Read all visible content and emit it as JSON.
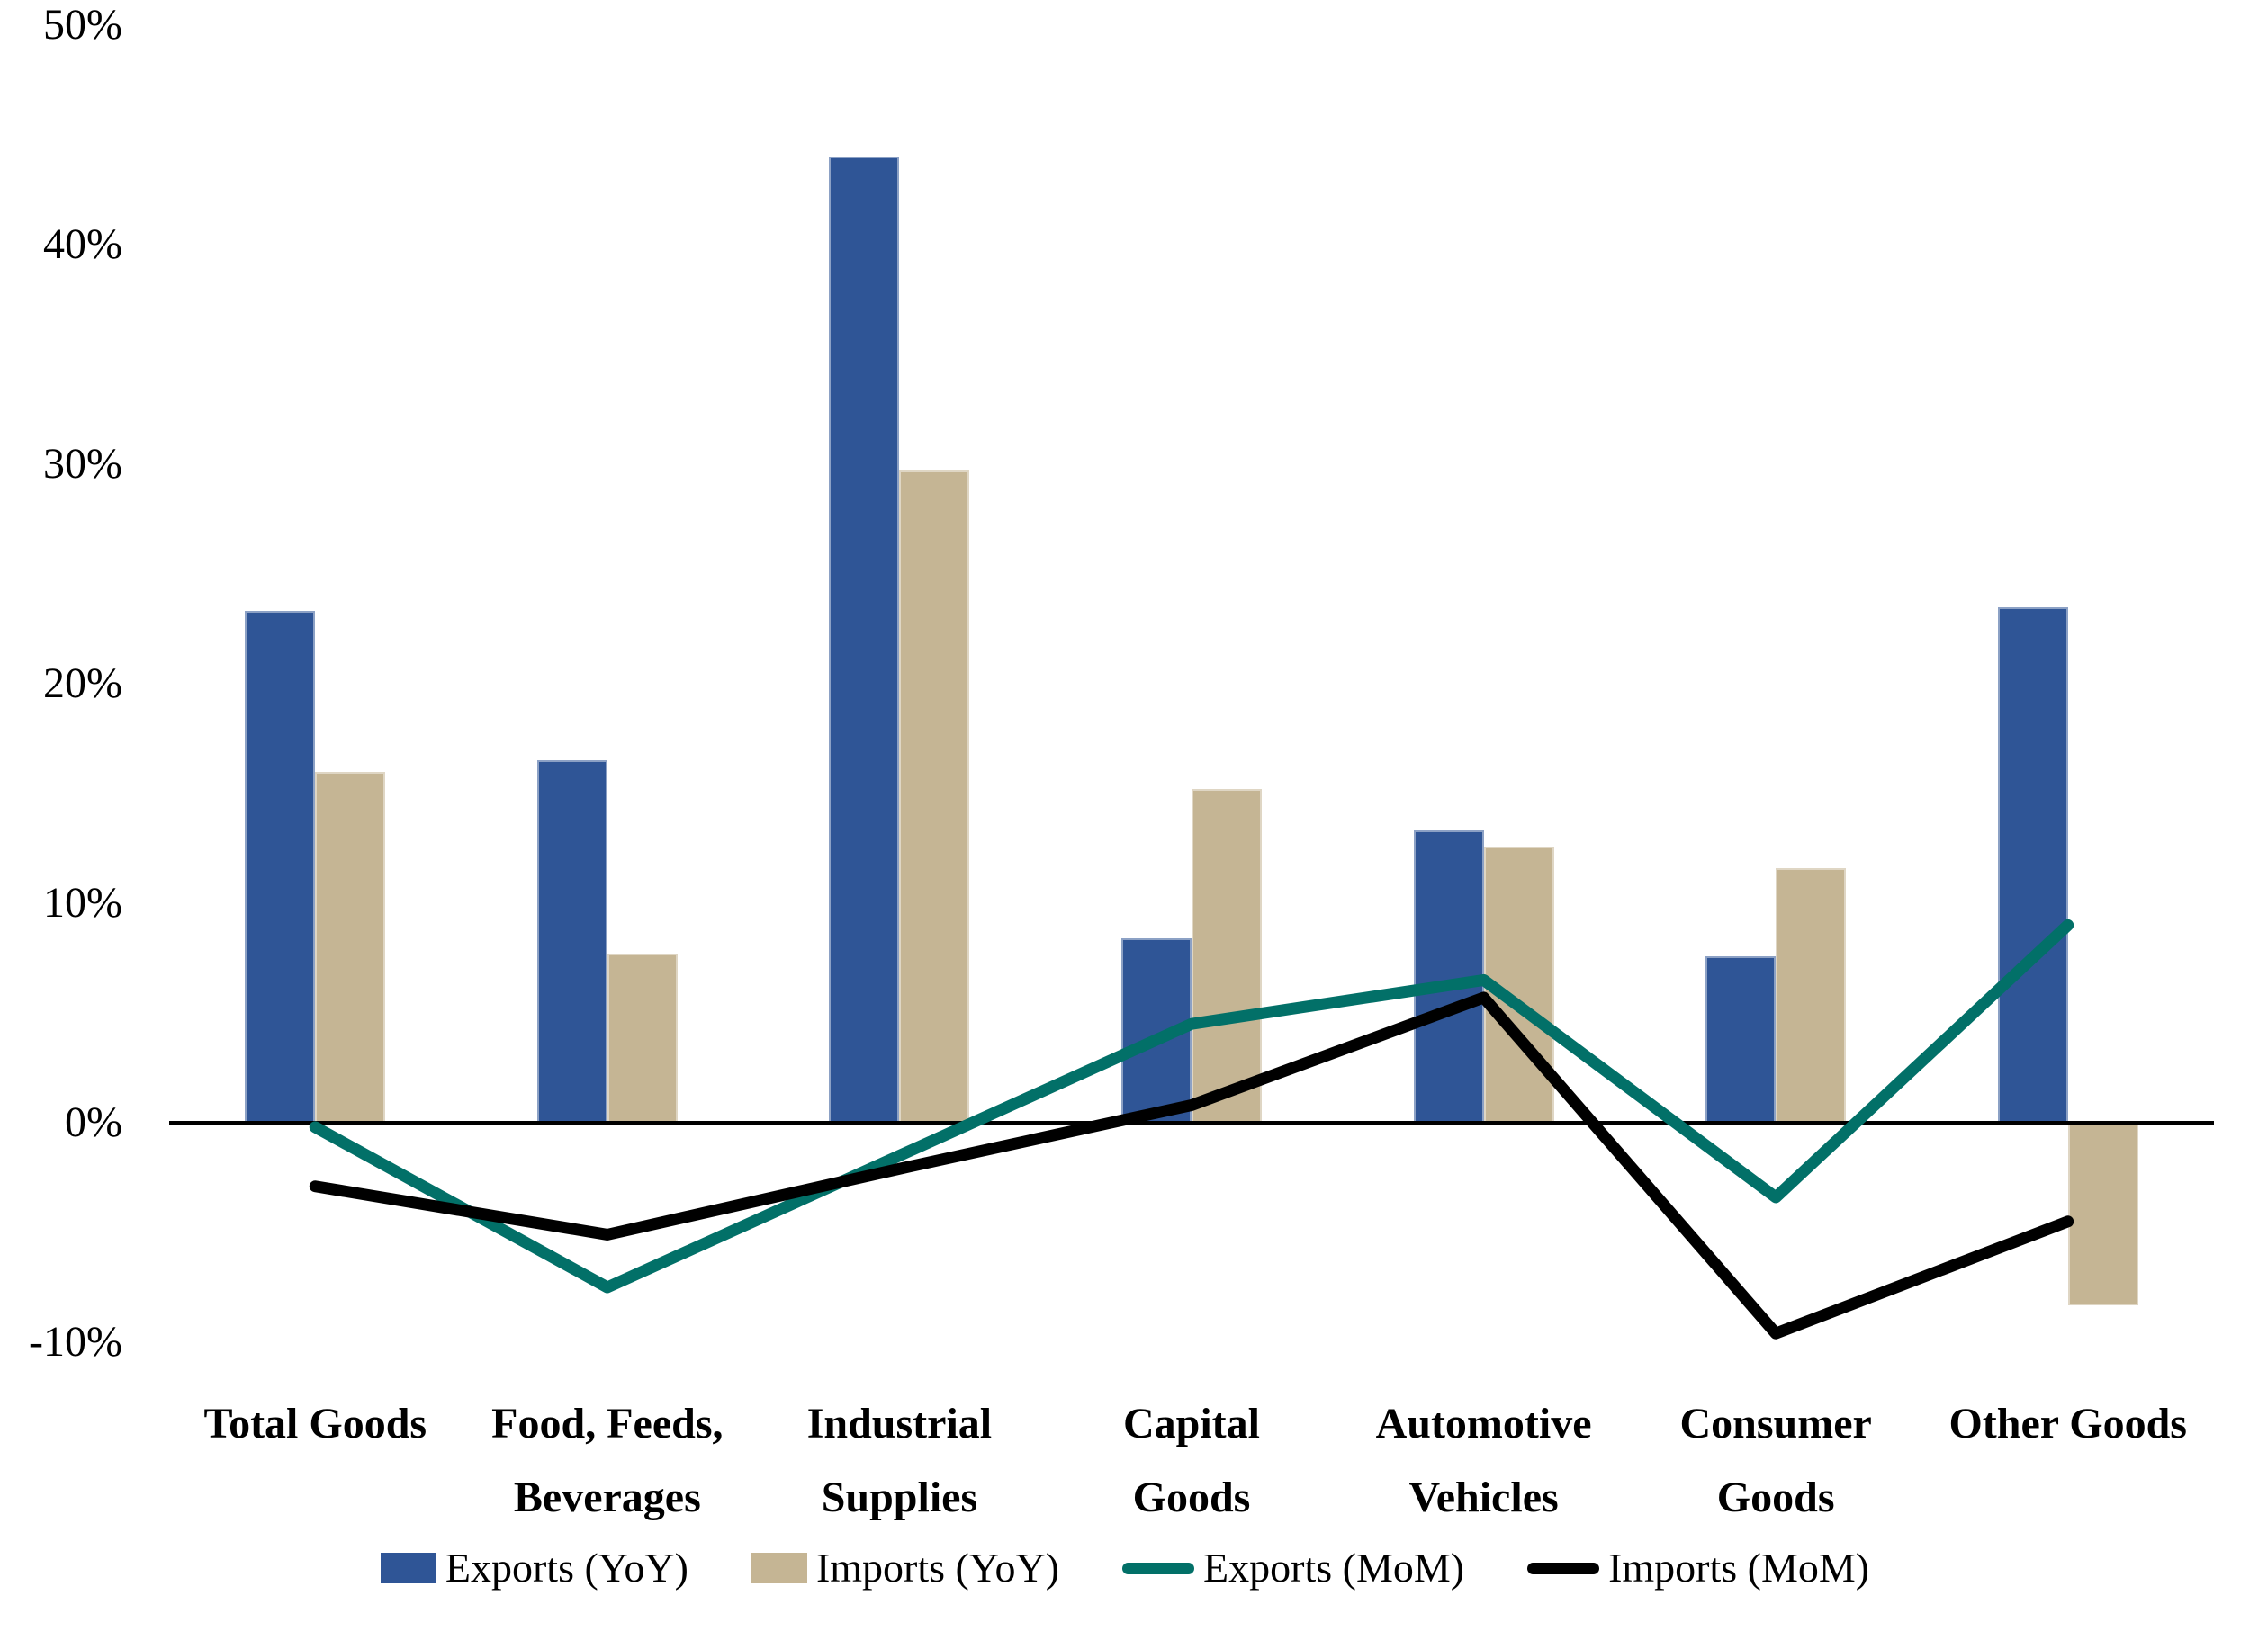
{
  "chart_data": {
    "type": "combo",
    "title": "",
    "categories": [
      "Total Goods",
      "Food, Feeds, Beverages",
      "Industrial Supplies",
      "Capital Goods",
      "Automotive Vehicles",
      "Consumer Goods",
      "Other Goods"
    ],
    "category_label_lines": [
      [
        "Total Goods"
      ],
      [
        "Food, Feeds,",
        "Beverages"
      ],
      [
        "Industrial",
        "Supplies"
      ],
      [
        "Capital",
        "Goods"
      ],
      [
        "Automotive",
        "Vehicles"
      ],
      [
        "Consumer",
        "Goods"
      ],
      [
        "Other Goods"
      ]
    ],
    "series": [
      {
        "name": "Exports (YoY)",
        "type": "bar",
        "color": "#2F5596",
        "values": [
          23.3,
          16.5,
          44.0,
          8.4,
          13.3,
          7.6,
          23.5
        ]
      },
      {
        "name": "Imports (YoY)",
        "type": "bar",
        "color": "#C5B594",
        "values": [
          16.0,
          7.7,
          29.7,
          15.2,
          12.6,
          11.6,
          -8.3
        ]
      },
      {
        "name": "Exports (MoM)",
        "type": "line",
        "color": "#027068",
        "values": [
          -0.2,
          -7.5,
          -1.5,
          4.5,
          6.5,
          -3.4,
          9.0
        ]
      },
      {
        "name": "Imports (MoM)",
        "type": "line",
        "color": "#000000",
        "values": [
          -2.9,
          -5.1,
          -2.1,
          0.8,
          5.7,
          -9.6,
          -4.5
        ]
      }
    ],
    "yticks": [
      {
        "label": "50%",
        "value": 50
      },
      {
        "label": "40%",
        "value": 40
      },
      {
        "label": "30%",
        "value": 30
      },
      {
        "label": "20%",
        "value": 20
      },
      {
        "label": "10%",
        "value": 10
      },
      {
        "label": "0%",
        "value": 0
      },
      {
        "label": "-10%",
        "value": -10
      }
    ],
    "ylim": [
      -10,
      50
    ],
    "grid": false,
    "legend_position": "bottom",
    "axis_color": "#000000",
    "background": "#FFFFFF"
  }
}
